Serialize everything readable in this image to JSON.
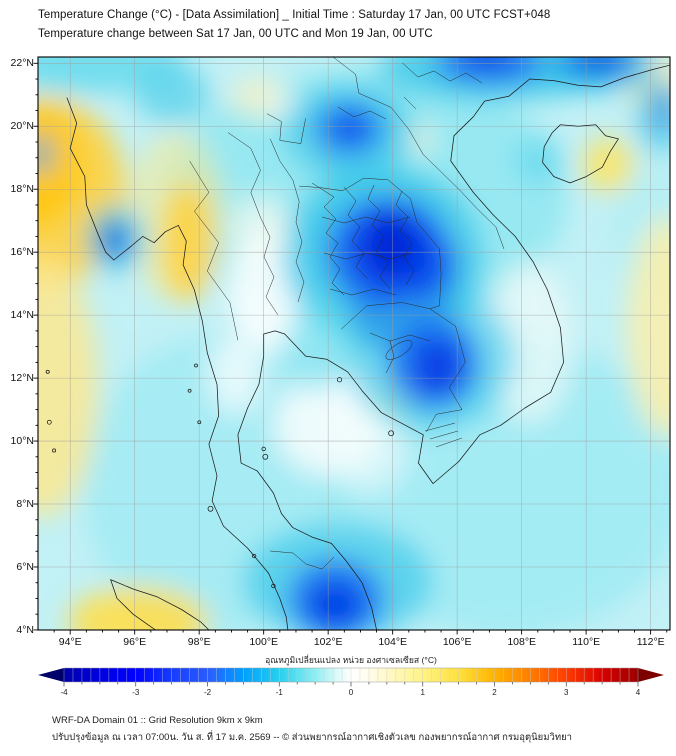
{
  "header": {
    "title_line1": "Temperature Change (°C) - [Data Assimilation] _ Initial Time : Saturday 17 Jan, 00 UTC FCST+048",
    "title_line2": "Temperature change between Sat 17 Jan, 00 UTC and Mon 19 Jan, 00 UTC"
  },
  "map": {
    "x_tick_labels": [
      "94°E",
      "96°E",
      "98°E",
      "100°E",
      "102°E",
      "104°E",
      "106°E",
      "108°E",
      "110°E",
      "112°E"
    ],
    "y_tick_labels": [
      "22°N",
      "20°N",
      "18°N",
      "16°N",
      "14°N",
      "12°N",
      "10°N",
      "8°N",
      "6°N",
      "4°N"
    ]
  },
  "colorbar": {
    "label": "อุณหภูมิเปลี่ยนแปลง หน่วย องศาเซลเซียส (°C)",
    "tick_labels": [
      "-4",
      "-3",
      "-2",
      "-1",
      "0",
      "1",
      "2",
      "3",
      "4"
    ],
    "min": -4,
    "max": 4,
    "units": "°C",
    "cool_end_color": "#0000a8",
    "zero_color": "#ffffff",
    "warm_end_color": "#9a0000"
  },
  "footer": {
    "line1": "WRF-DA Domain 01 :: Grid Resolution 9km x 9km",
    "line2": "ปรับปรุงข้อมูล ณ เวลา 07:00น. วัน ส. ที่ 17 ม.ค. 2569 -- © ส่วนพยากรณ์อากาศเชิงตัวเลข กองพยากรณ์อากาศ กรมอุตุนิยมวิทยา"
  },
  "chart_data": {
    "type": "heatmap",
    "title": "Temperature Change (°C) - [Data Assimilation] _ Initial Time : Saturday 17 Jan, 00 UTC FCST+048",
    "subtitle": "Temperature change between Sat 17 Jan, 00 UTC and Mon 19 Jan, 00 UTC",
    "x_ticks": [
      "94°E",
      "96°E",
      "98°E",
      "100°E",
      "102°E",
      "104°E",
      "106°E",
      "108°E",
      "110°E",
      "112°E"
    ],
    "y_ticks": [
      "22°N",
      "20°N",
      "18°N",
      "16°N",
      "14°N",
      "12°N",
      "10°N",
      "8°N",
      "6°N",
      "4°N"
    ],
    "colorbar_label": "อุณหภูมิเปลี่ยนแปลง หน่วย องศาเซลเซียส (°C)",
    "colorbar_ticks": [
      -4,
      -3,
      -2,
      -1,
      0,
      1,
      2,
      3,
      4
    ],
    "value_range_c": [
      -4,
      4
    ],
    "legend_position": "bottom",
    "grid": true,
    "estimated_anomalies_c": [
      {
        "region": "Northeast Thailand / central Laos (~103-105E, 15-18N)",
        "value": -4
      },
      {
        "region": "Cambodia / southern Vietnam (~105E, 12N)",
        "value": -3.5
      },
      {
        "region": "Southern Gulf near Malaysia coast (~102.5E, 5N)",
        "value": -3.5
      },
      {
        "region": "Northern Laos (~102.5E, 20.3N)",
        "value": -3
      },
      {
        "region": "North Vietnam / South China coast along 22N (105-111E)",
        "value": -3
      },
      {
        "region": "Gulf of Martaban coast, Myanmar (~95.3E, 16.7N)",
        "value": -2.5
      },
      {
        "region": "Western Myanmar / Bay of Bengal (~93-95E, 16-21N)",
        "value": 1.5
      },
      {
        "region": "Eastern Myanmar highlands (~97.5-98.5E, 15-17N)",
        "value": 1.5
      },
      {
        "region": "East of Hainan island (~110.5E, 18.7N)",
        "value": 1
      },
      {
        "region": "NW Sumatra (~96E, 4.3N)",
        "value": 1
      },
      {
        "region": "Andaman Sea western edge (~93-95E, 8-14N)",
        "value": 0.5
      },
      {
        "region": "SE South China Sea corner (~111-112.6E, 10-16N)",
        "value": 0.5
      },
      {
        "region": "Gulf of Thailand (~100-103E, 9-12N)",
        "value": 0
      },
      {
        "region": "Most remaining areas",
        "value": -1
      }
    ]
  }
}
